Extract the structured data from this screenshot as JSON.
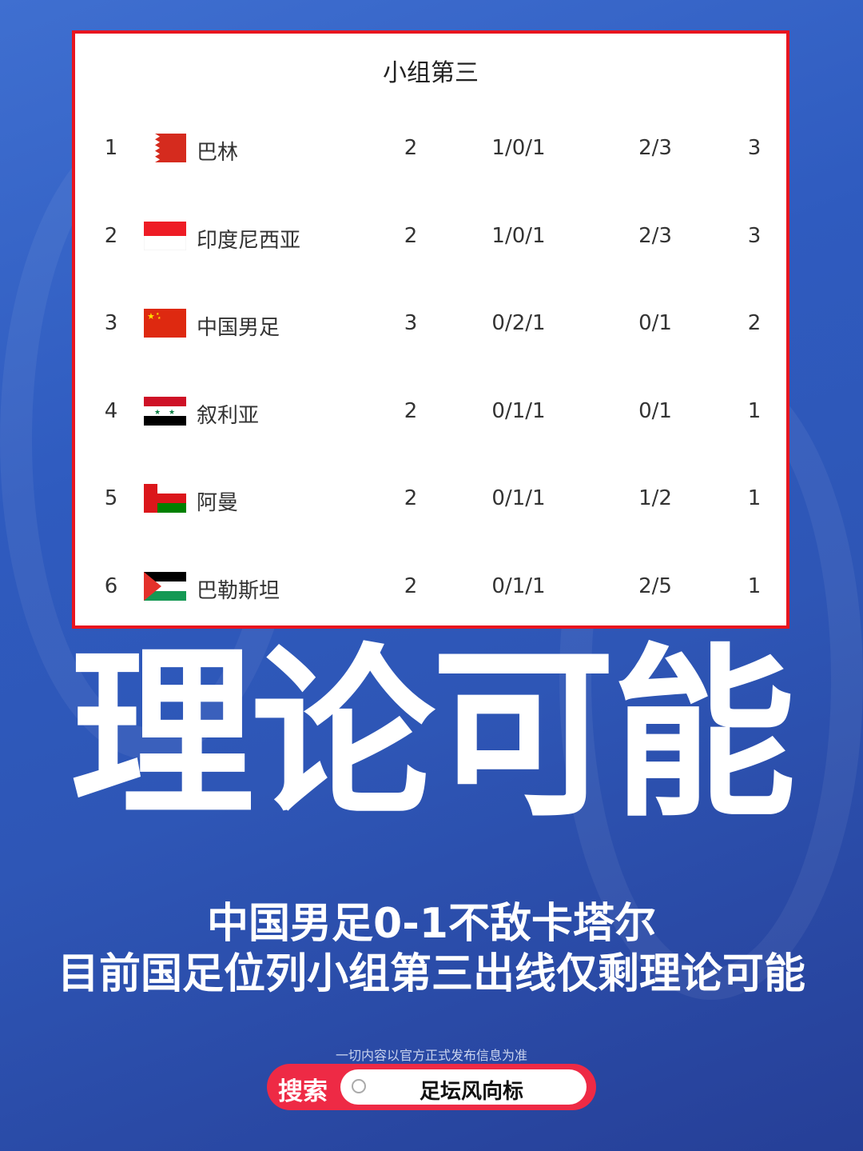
{
  "table": {
    "title": "小组第三",
    "rows": [
      {
        "rank": "1",
        "flag": "bahrain-flag",
        "team": "巴林",
        "played": "2",
        "wdl": "1/0/1",
        "goals": "2/3",
        "points": "3"
      },
      {
        "rank": "2",
        "flag": "indonesia-flag",
        "team": "印度尼西亚",
        "played": "2",
        "wdl": "1/0/1",
        "goals": "2/3",
        "points": "3"
      },
      {
        "rank": "3",
        "flag": "china-flag",
        "team": "中国男足",
        "played": "3",
        "wdl": "0/2/1",
        "goals": "0/1",
        "points": "2"
      },
      {
        "rank": "4",
        "flag": "syria-flag",
        "team": "叙利亚",
        "played": "2",
        "wdl": "0/1/1",
        "goals": "0/1",
        "points": "1"
      },
      {
        "rank": "5",
        "flag": "oman-flag",
        "team": "阿曼",
        "played": "2",
        "wdl": "0/1/1",
        "goals": "1/2",
        "points": "1"
      },
      {
        "rank": "6",
        "flag": "palestine-flag",
        "team": "巴勒斯坦",
        "played": "2",
        "wdl": "0/1/1",
        "goals": "2/5",
        "points": "1"
      }
    ]
  },
  "headline": "理论可能",
  "subtitle_line1": "中国男足0-1不敌卡塔尔",
  "subtitle_line2": "目前国足位列小组第三出线仅剩理论可能",
  "disclaimer": "一切内容以官方正式发布信息为准",
  "search": {
    "label": "搜索",
    "query": "足坛风向标",
    "icon": "search-icon"
  },
  "colors": {
    "accent": "#e8151f",
    "search_bar": "#ee2a45",
    "background": "#2f5bbf"
  }
}
